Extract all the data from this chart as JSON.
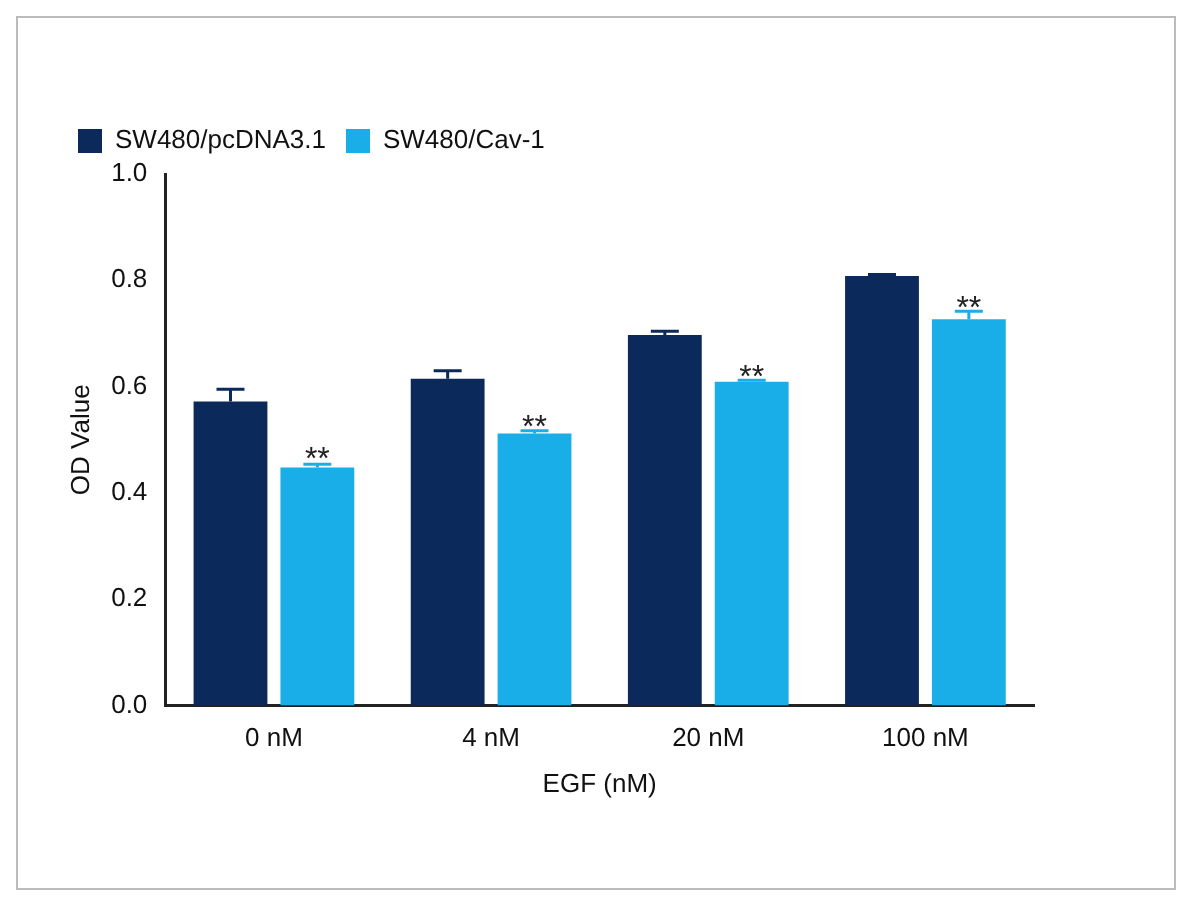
{
  "chart_data": {
    "type": "bar",
    "xlabel": "EGF (nM)",
    "ylabel": "OD Value",
    "categories": [
      "0 nM",
      "4 nM",
      "20 nM",
      "100 nM"
    ],
    "series": [
      {
        "name": "SW480/pcDNA3.1",
        "color": "#0b2a5b",
        "values": [
          0.572,
          0.615,
          0.697,
          0.808
        ],
        "errors": [
          0.023,
          0.015,
          0.007,
          0.003
        ]
      },
      {
        "name": "SW480/Cav-1",
        "color": "#1aaee8",
        "values": [
          0.448,
          0.512,
          0.609,
          0.727
        ],
        "errors": [
          0.006,
          0.005,
          0.003,
          0.015
        ]
      }
    ],
    "ylim": [
      0,
      1
    ],
    "yticks": [
      {
        "value": 0,
        "label": "0.0"
      },
      {
        "value": 0.2,
        "label": "0.2"
      },
      {
        "value": 0.4,
        "label": "0.4"
      },
      {
        "value": 0.6,
        "label": "0.6"
      },
      {
        "value": 0.8,
        "label": "0.8"
      },
      {
        "value": 1,
        "label": "1.0"
      }
    ],
    "grid": false,
    "legend": "top left",
    "annotations": [
      {
        "text": "**",
        "x": "0 nM",
        "y": 0.46
      },
      {
        "text": "**",
        "x": "4 nM",
        "y": 0.52
      },
      {
        "text": "**",
        "x": "20 nM",
        "y": 0.615
      },
      {
        "text": "**",
        "x": "100 nM",
        "y": 0.745
      }
    ]
  }
}
